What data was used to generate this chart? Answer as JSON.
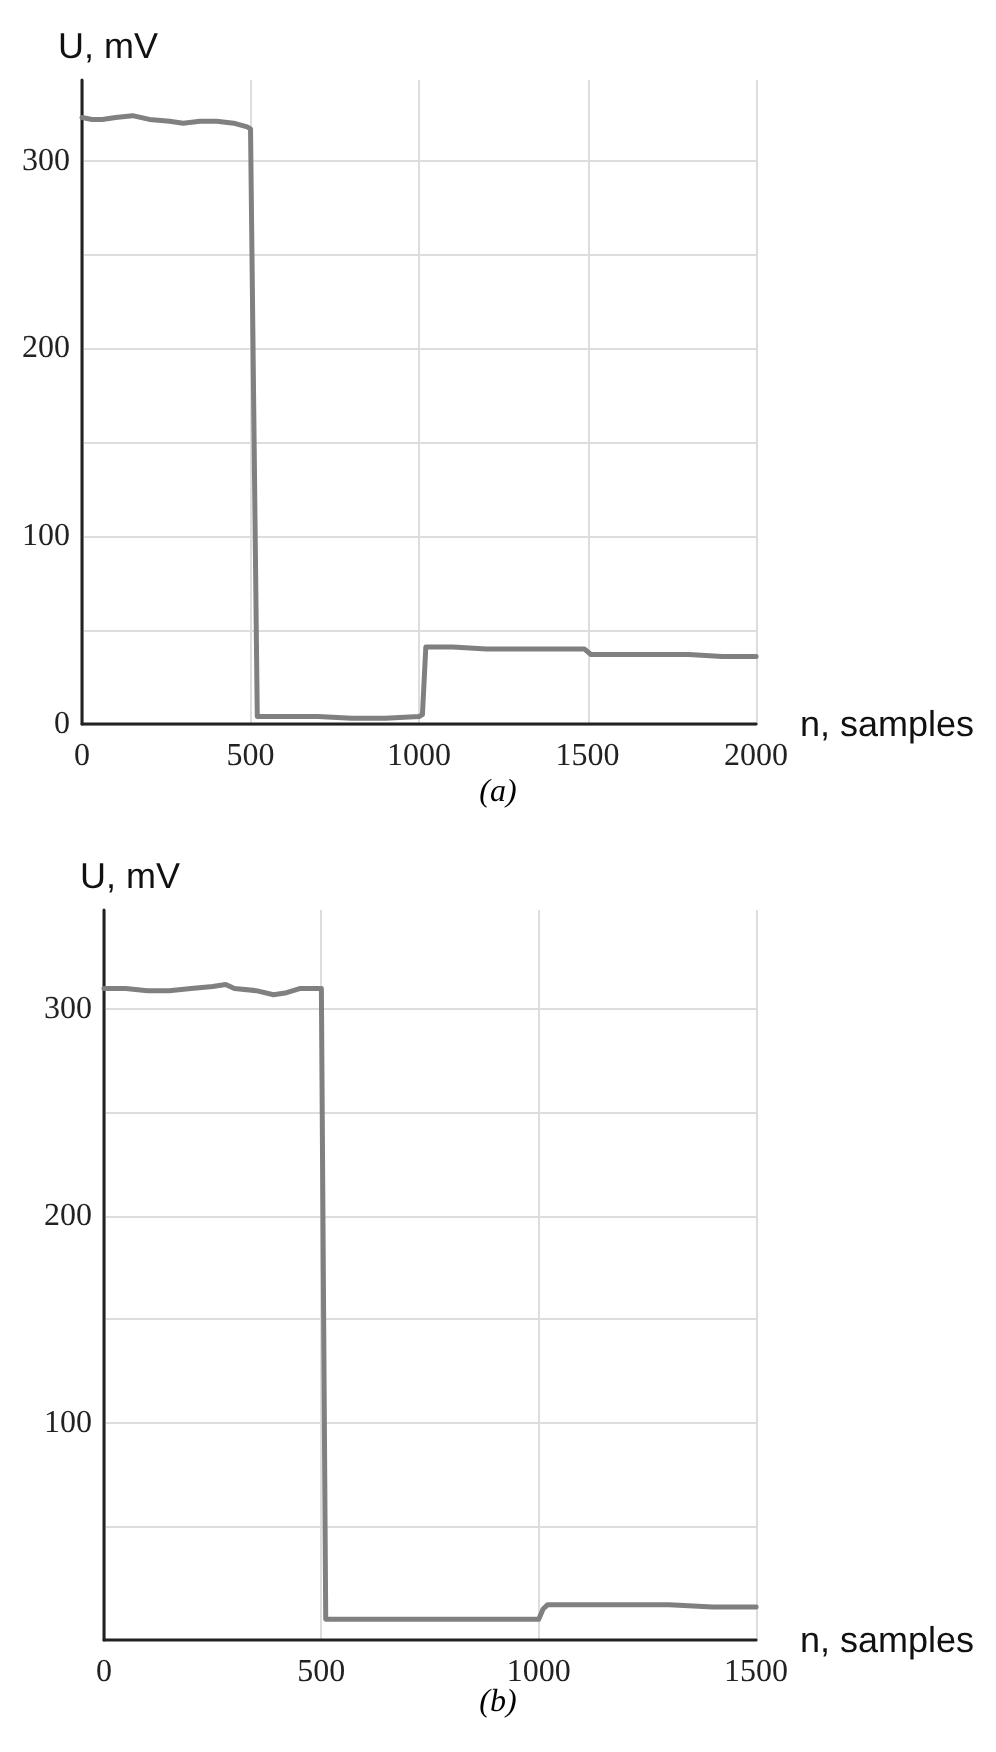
{
  "chart_data": [
    {
      "type": "line",
      "title": "(a)",
      "xlabel": "n, samples",
      "ylabel": "U, mV",
      "xlim": [
        0,
        2000
      ],
      "ylim": [
        0,
        343
      ],
      "xticks": [
        0,
        500,
        1000,
        1500,
        2000
      ],
      "yticks": [
        0,
        {
          "value": 50,
          "label": null
        },
        100,
        {
          "value": 150,
          "label": null
        },
        200,
        {
          "value": 250,
          "label": null
        },
        300
      ],
      "grid": true,
      "marker": "none",
      "line_style": "solid",
      "series": [
        {
          "color": "#808080",
          "x": [
            0,
            30,
            60,
            100,
            150,
            200,
            260,
            300,
            350,
            400,
            450,
            490,
            500,
            520,
            600,
            700,
            800,
            900,
            1000,
            1010,
            1020,
            1100,
            1200,
            1300,
            1400,
            1490,
            1510,
            1600,
            1700,
            1800,
            1900,
            2000
          ],
          "values": [
            323,
            322,
            322,
            323,
            324,
            322,
            321,
            320,
            321,
            321,
            320,
            318,
            317,
            4,
            4,
            4,
            3,
            3,
            4,
            5,
            41,
            41,
            40,
            40,
            40,
            40,
            37,
            37,
            37,
            37,
            36,
            36
          ]
        }
      ]
    },
    {
      "type": "line",
      "title": "(b)",
      "xlabel": "n, samples",
      "ylabel": "U, mV",
      "xlim": [
        0,
        1500
      ],
      "ylim": [
        -5,
        348
      ],
      "xticks": [
        0,
        500,
        1000,
        1500
      ],
      "yticks": [
        {
          "value": 50,
          "label": null
        },
        100,
        {
          "value": 150,
          "label": null
        },
        200,
        {
          "value": 250,
          "label": null
        },
        300
      ],
      "grid": true,
      "marker": "none",
      "line_style": "solid",
      "series": [
        {
          "color": "#808080",
          "x": [
            0,
            50,
            100,
            150,
            200,
            250,
            280,
            300,
            350,
            390,
            420,
            450,
            490,
            500,
            510,
            600,
            700,
            800,
            900,
            990,
            1000,
            1010,
            1020,
            1100,
            1200,
            1300,
            1400,
            1500
          ],
          "values": [
            310,
            310,
            309,
            309,
            310,
            311,
            312,
            310,
            309,
            307,
            308,
            310,
            310,
            310,
            5,
            5,
            5,
            5,
            5,
            5,
            5,
            10,
            12,
            12,
            12,
            12,
            11,
            11
          ]
        }
      ]
    }
  ]
}
